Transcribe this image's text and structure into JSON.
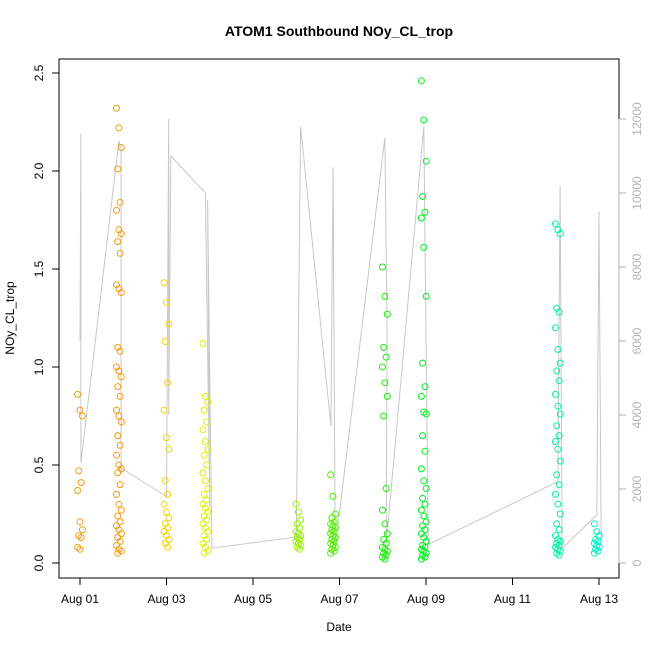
{
  "chart_data": {
    "type": "scatter",
    "title": "ATOM1 Southbound NOy_CL_trop",
    "xlabel": "Date",
    "ylabel": "NOy_CL_trop",
    "x_ticks": [
      "Aug 01",
      "Aug 03",
      "Aug 05",
      "Aug 07",
      "Aug 09",
      "Aug 11",
      "Aug 13"
    ],
    "xlim": [
      0,
      12.35
    ],
    "ylim": [
      0,
      2.5
    ],
    "y_ticks": [
      "0.0",
      "0.5",
      "1.0",
      "1.5",
      "2.0",
      "2.5"
    ],
    "y2lim": [
      0,
      12000
    ],
    "y2_ticks": [
      "0",
      "2000",
      "4000",
      "6000",
      "8000",
      "10000",
      "12000"
    ],
    "grid": false,
    "legend": "none",
    "colors": {
      "altitude_line": "#c8c8c8",
      "right_axis": "#b3b3b3",
      "gradient": [
        "#f39c12",
        "#f5d400",
        "#d8f500",
        "#00f000",
        "#00f57a",
        "#00f0b8"
      ]
    },
    "series": [
      {
        "x": 0.0,
        "color": "#f39c12",
        "values": [
          0.86,
          0.78,
          0.75,
          0.47,
          0.41,
          0.37,
          0.21,
          0.17,
          0.14,
          0.13,
          0.08,
          0.07
        ]
      },
      {
        "x": 0.9,
        "color": "#f39c12",
        "values": [
          2.32,
          2.22,
          2.12,
          2.01,
          1.84,
          1.8,
          1.7,
          1.68,
          1.64,
          1.58,
          1.42,
          1.4,
          1.38,
          1.1,
          1.08,
          1.0,
          0.98,
          0.95,
          0.9,
          0.85,
          0.78,
          0.75,
          0.72,
          0.65,
          0.6,
          0.55,
          0.5,
          0.48,
          0.46,
          0.4,
          0.35,
          0.3,
          0.27,
          0.24,
          0.21,
          0.19,
          0.17,
          0.15,
          0.13,
          0.11,
          0.09,
          0.07,
          0.06,
          0.05
        ]
      },
      {
        "x": 2.0,
        "color": "#f5d400",
        "values": [
          1.43,
          1.33,
          1.22,
          1.13,
          0.92,
          0.78,
          0.64,
          0.58,
          0.42,
          0.35,
          0.3,
          0.26,
          0.23,
          0.2,
          0.18,
          0.16,
          0.14,
          0.12,
          0.1,
          0.08
        ]
      },
      {
        "x": 2.9,
        "color": "#dcf000",
        "values": [
          1.12,
          0.85,
          0.82,
          0.78,
          0.72,
          0.68,
          0.62,
          0.58,
          0.55,
          0.5,
          0.46,
          0.42,
          0.38,
          0.35,
          0.32,
          0.3,
          0.28,
          0.26,
          0.24,
          0.22,
          0.2,
          0.18,
          0.16,
          0.14,
          0.12,
          0.1,
          0.08,
          0.06,
          0.05
        ]
      },
      {
        "x": 5.05,
        "color": "#96f000",
        "values": [
          0.3,
          0.26,
          0.22,
          0.2,
          0.18,
          0.16,
          0.15,
          0.14,
          0.13,
          0.12,
          0.11,
          0.1,
          0.09,
          0.08,
          0.07
        ]
      },
      {
        "x": 5.85,
        "color": "#50f000",
        "values": [
          0.45,
          0.34,
          0.25,
          0.23,
          0.21,
          0.2,
          0.19,
          0.18,
          0.17,
          0.16,
          0.15,
          0.14,
          0.13,
          0.12,
          0.11,
          0.1,
          0.09,
          0.08,
          0.07,
          0.06,
          0.05
        ]
      },
      {
        "x": 7.05,
        "color": "#14f000",
        "values": [
          1.51,
          1.36,
          1.27,
          1.1,
          1.05,
          1.0,
          0.92,
          0.85,
          0.75,
          0.38,
          0.27,
          0.2,
          0.15,
          0.12,
          0.1,
          0.08,
          0.07,
          0.06,
          0.05,
          0.04,
          0.03,
          0.02
        ]
      },
      {
        "x": 7.95,
        "color": "#00f020",
        "values": [
          2.46,
          2.26,
          2.05,
          1.87,
          1.79,
          1.76,
          1.61,
          1.36,
          1.02,
          0.9,
          0.85,
          0.77,
          0.76,
          0.65,
          0.57,
          0.48,
          0.42,
          0.38,
          0.33,
          0.3,
          0.27,
          0.24,
          0.21,
          0.19,
          0.17,
          0.15,
          0.13,
          0.11,
          0.09,
          0.08,
          0.07,
          0.06,
          0.05,
          0.04,
          0.03,
          0.02
        ]
      },
      {
        "x": 11.05,
        "color": "#00f0a8",
        "values": [
          1.73,
          1.7,
          1.68,
          1.3,
          1.28,
          1.2,
          1.09,
          1.02,
          0.98,
          0.93,
          0.86,
          0.8,
          0.76,
          0.7,
          0.65,
          0.62,
          0.58,
          0.52,
          0.45,
          0.4,
          0.35,
          0.3,
          0.25,
          0.2,
          0.17,
          0.14,
          0.12,
          0.11,
          0.1,
          0.09,
          0.08,
          0.07,
          0.06,
          0.05,
          0.04
        ]
      },
      {
        "x": 11.95,
        "color": "#00f0c8",
        "values": [
          0.2,
          0.16,
          0.14,
          0.12,
          0.11,
          0.1,
          0.09,
          0.08,
          0.07,
          0.06,
          0.05
        ]
      }
    ],
    "altitude_trace": {
      "x": [
        0.0,
        0.02,
        0.02,
        0.9,
        0.95,
        0.95,
        0.9,
        2.0,
        2.05,
        2.05,
        2.1,
        2.9,
        3.0,
        2.95,
        3.05,
        5.0,
        5.1,
        5.8,
        5.85,
        5.9,
        7.05,
        7.1,
        7.08,
        7.95,
        8.05,
        11.05,
        11.1,
        11.15,
        11.95,
        12.0,
        12.05
      ],
      "values": [
        6000,
        11600,
        2700,
        11400,
        11200,
        2400,
        2600,
        1800,
        12000,
        4000,
        11000,
        10000,
        1500,
        9800,
        400,
        700,
        11800,
        3700,
        10700,
        400,
        11500,
        6200,
        500,
        11800,
        500,
        2200,
        10200,
        400,
        1300,
        9500,
        500
      ]
    }
  }
}
